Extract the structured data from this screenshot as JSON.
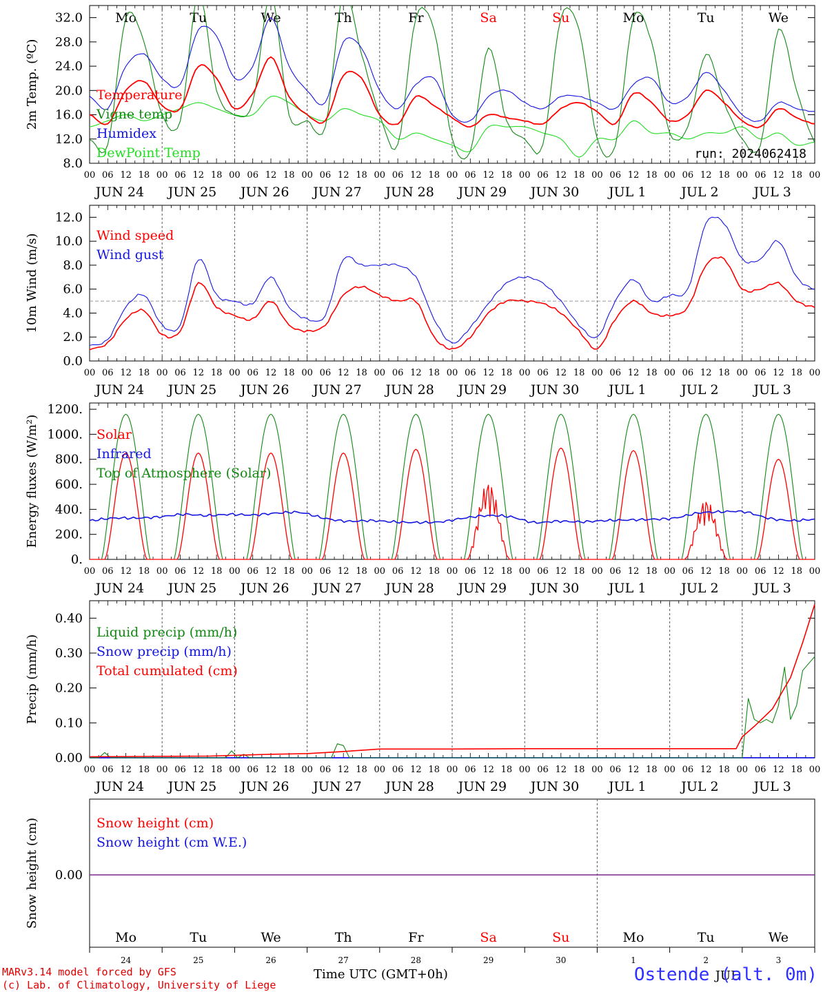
{
  "footer": {
    "credit_line1": "MARv3.14 model forced by GFS",
    "credit_line2": "(c) Lab. of Climatology, University of Liege",
    "station": "Ostende (alt. 0m)",
    "x_title": "Time UTC (GMT+0h)",
    "jul_label": "JUL"
  },
  "colors": {
    "red": "#ff0000",
    "green": "#118811",
    "blue": "#1515e0",
    "lightgreen": "#22dd22",
    "purple": "#7a2a8a",
    "grid": "#555555",
    "ref": "#999999"
  },
  "chart_data": [
    {
      "type": "line",
      "ylabel": "2m Temp. (ºC)",
      "ylim": [
        8,
        34
      ],
      "yticks": [
        "8.0",
        "12.0",
        "16.0",
        "20.0",
        "24.0",
        "28.0",
        "32.0"
      ],
      "weekdays": [
        "Mo",
        "Tu",
        "We",
        "Th",
        "Fr",
        "Sa",
        "Su",
        "Mo",
        "Tu",
        "We"
      ],
      "weekend_days": [
        "Sa",
        "Su"
      ],
      "date_labels": [
        "JUN 24",
        "JUN 25",
        "JUN 26",
        "JUN 27",
        "JUN 28",
        "JUN 29",
        "JUN 30",
        "JUL  1",
        "JUL  2",
        "JUL  3"
      ],
      "hour_labels": [
        "00",
        "06",
        "12",
        "18"
      ],
      "annotation": "run: 2024062418",
      "legend": [
        {
          "name": "Temperature",
          "color": "red"
        },
        {
          "name": "Vigne temp",
          "color": "green"
        },
        {
          "name": "Humidex",
          "color": "blue"
        },
        {
          "name": "DewPoint Temp",
          "color": "lightgreen"
        }
      ],
      "x_hours": [
        0,
        6,
        12,
        18,
        24,
        30,
        36,
        42,
        48,
        54,
        60,
        66,
        72,
        78,
        84,
        90,
        96,
        102,
        108,
        114,
        120,
        126,
        132,
        138,
        144,
        150,
        156,
        162,
        168,
        174,
        180,
        186,
        192,
        198,
        204,
        210,
        216,
        222,
        228,
        234,
        240
      ],
      "series": [
        {
          "name": "Temperature",
          "color": "red",
          "values": [
            16,
            14.5,
            20,
            21.5,
            17.5,
            17,
            24,
            22,
            17,
            19.5,
            25.5,
            19,
            16,
            15,
            22.5,
            22,
            16,
            14.5,
            19,
            17.5,
            15.5,
            14,
            16,
            15.5,
            15,
            14.5,
            17,
            18,
            16.5,
            14.5,
            19.5,
            18,
            15,
            16,
            20,
            18,
            15,
            14,
            17,
            15.5,
            14.5
          ]
        },
        {
          "name": "Vigne temp",
          "color": "green",
          "values": [
            12,
            11,
            32,
            28,
            16,
            15,
            36,
            20,
            16,
            18,
            36,
            16,
            15,
            14,
            36,
            26,
            16,
            11,
            32,
            30,
            12,
            10,
            27,
            15,
            12,
            11,
            32,
            30,
            12,
            11,
            32,
            28,
            13,
            14,
            26,
            18,
            12,
            11,
            30,
            20,
            11.5
          ]
        },
        {
          "name": "Humidex",
          "color": "blue",
          "values": [
            19,
            17,
            24,
            26,
            22,
            21,
            30,
            29,
            22,
            24,
            32,
            24,
            20,
            18,
            28,
            27,
            20,
            17,
            21,
            22,
            16,
            15,
            19,
            20,
            18,
            17,
            19,
            19,
            18,
            17,
            21,
            22,
            18,
            19,
            23,
            20,
            16,
            15,
            18,
            17,
            16.5
          ]
        },
        {
          "name": "DewPoint Temp",
          "color": "lightgreen",
          "values": [
            14,
            15,
            16,
            15,
            16,
            17,
            18,
            17,
            16,
            16,
            19,
            18,
            16,
            15,
            17,
            16,
            15,
            12,
            13,
            12,
            11,
            10,
            14,
            14,
            14,
            13,
            12,
            9,
            12,
            12,
            15,
            13,
            13,
            12,
            13,
            13,
            14,
            12,
            13,
            11,
            11.5
          ]
        }
      ]
    },
    {
      "type": "line",
      "ylabel": "10m Wind (m/s)",
      "ylim": [
        0,
        13
      ],
      "yticks": [
        "0.0",
        "2.0",
        "4.0",
        "6.0",
        "8.0",
        "10.0",
        "12.0"
      ],
      "reference_line": 5,
      "legend": [
        {
          "name": "Wind speed",
          "color": "red"
        },
        {
          "name": "Wind gust",
          "color": "blue"
        }
      ],
      "series": [
        {
          "name": "Wind speed",
          "color": "red",
          "values": [
            1,
            1.5,
            3.5,
            4.2,
            2.2,
            2.5,
            6.5,
            4.5,
            3.8,
            3.5,
            5,
            3,
            2.5,
            3,
            5.5,
            6.2,
            5.5,
            5,
            5,
            2,
            1,
            2,
            4,
            5,
            5,
            4.8,
            4,
            2.5,
            1,
            3.5,
            5,
            4,
            3.8,
            4.5,
            8,
            8.5,
            6,
            6,
            6.5,
            5,
            4.5
          ]
        },
        {
          "name": "Wind gust",
          "color": "blue",
          "values": [
            1.3,
            1.8,
            4.5,
            5.5,
            3,
            3,
            8.5,
            5.5,
            5,
            4.8,
            7,
            4.5,
            3.5,
            3.8,
            8.5,
            8,
            8,
            8,
            7,
            3.5,
            1.5,
            2.8,
            4.8,
            6.5,
            7,
            6.5,
            5,
            3,
            2,
            5,
            6.8,
            5,
            5.5,
            6,
            11.5,
            11.5,
            8.5,
            8.5,
            10,
            7,
            6
          ]
        }
      ]
    },
    {
      "type": "line",
      "ylabel": "Energy fluxes (W/m²)",
      "ylim": [
        0,
        1250
      ],
      "yticks": [
        "0.",
        "200.",
        "400.",
        "600.",
        "800.",
        "1000.",
        "1200."
      ],
      "legend": [
        {
          "name": "Solar",
          "color": "red"
        },
        {
          "name": "Infrared",
          "color": "blue"
        },
        {
          "name": "Top of Atmosphere (Solar)",
          "color": "green"
        }
      ],
      "toa_peak": 1160,
      "solar_peaks": [
        850,
        850,
        850,
        850,
        880,
        620,
        890,
        870,
        480,
        800
      ],
      "infrared_values": [
        310,
        330,
        330,
        340,
        360,
        350,
        360,
        355,
        370,
        375,
        330,
        305,
        310,
        300,
        295,
        300,
        330,
        350,
        340,
        295,
        305,
        300,
        310,
        315,
        320,
        330,
        370,
        380,
        380,
        330,
        310,
        320
      ]
    },
    {
      "type": "line",
      "ylabel": "Precip (mm/h)",
      "ylim": [
        0,
        0.45
      ],
      "yticks": [
        "0.00",
        "0.10",
        "0.20",
        "0.30",
        "0.40"
      ],
      "legend": [
        {
          "name": "Liquid precip (mm/h)",
          "color": "green"
        },
        {
          "name": "Snow precip (mm/h)",
          "color": "blue"
        },
        {
          "name": "Total cumulated (cm)",
          "color": "red"
        }
      ],
      "series": [
        {
          "name": "Liquid precip (mm/h)",
          "color": "green",
          "x": [
            0,
            3,
            5,
            7,
            9,
            45,
            47,
            49,
            51,
            53,
            55,
            80,
            82,
            84,
            86,
            88,
            90,
            216,
            218,
            220,
            222,
            224,
            226,
            228,
            230,
            232,
            234,
            236,
            238,
            240
          ],
          "values": [
            0,
            0,
            0.015,
            0,
            0,
            0,
            0.02,
            0,
            0.01,
            0,
            0,
            0,
            0.04,
            0.035,
            0,
            0,
            0,
            0,
            0.17,
            0.11,
            0.1,
            0.11,
            0.1,
            0.15,
            0.26,
            0.11,
            0.15,
            0.25,
            0.27,
            0.29
          ]
        },
        {
          "name": "Total cumulated (cm)",
          "color": "red",
          "x": [
            0,
            20,
            40,
            60,
            72,
            84,
            96,
            120,
            144,
            168,
            192,
            214,
            216,
            220,
            226,
            232,
            236,
            240
          ],
          "values": [
            0.003,
            0.004,
            0.005,
            0.01,
            0.012,
            0.018,
            0.025,
            0.025,
            0.026,
            0.026,
            0.026,
            0.026,
            0.06,
            0.09,
            0.14,
            0.23,
            0.33,
            0.44
          ]
        }
      ]
    },
    {
      "type": "line",
      "ylabel": "Snow height (cm)",
      "yticks": [
        "0.00"
      ],
      "legend": [
        {
          "name": "Snow height (cm)",
          "color": "red"
        },
        {
          "name": "Snow height (cm W.E.)",
          "color": "blue"
        }
      ],
      "day_numbers": [
        "24",
        "25",
        "26",
        "27",
        "28",
        "29",
        "30",
        "1",
        "2",
        "3"
      ],
      "series": [
        {
          "name": "Snow height",
          "color": "purple",
          "values": [
            0,
            0
          ]
        }
      ]
    }
  ]
}
